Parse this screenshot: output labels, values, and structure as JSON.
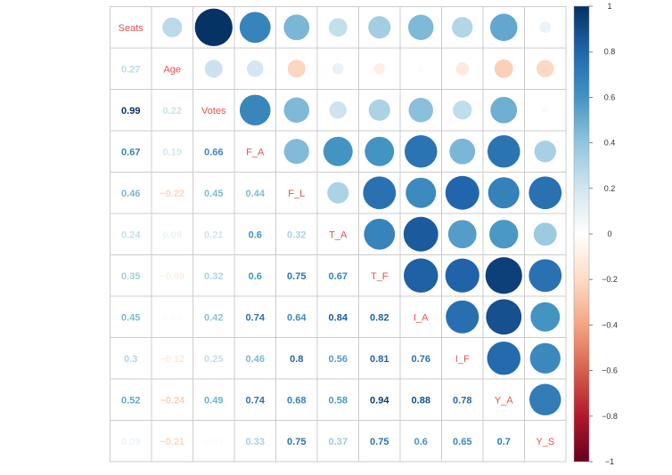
{
  "chart_data": {
    "type": "heatmap",
    "variables": [
      "Seats",
      "Age",
      "Votes",
      "F_A",
      "F_L",
      "T_A",
      "T_F",
      "I_A",
      "I_F",
      "Y_A",
      "Y_S"
    ],
    "matrix": [
      [
        1,
        0.27,
        0.99,
        0.67,
        0.46,
        0.24,
        0.35,
        0.45,
        0.3,
        0.52,
        0.09
      ],
      [
        0.27,
        1,
        0.22,
        0.19,
        -0.22,
        0.09,
        -0.09,
        0.03,
        -0.12,
        -0.24,
        -0.21
      ],
      [
        0.99,
        0.22,
        1,
        0.66,
        0.45,
        0.21,
        0.32,
        0.42,
        0.25,
        0.49,
        0.03
      ],
      [
        0.67,
        0.19,
        0.66,
        1,
        0.44,
        0.6,
        0.6,
        0.74,
        0.46,
        0.74,
        0.33
      ],
      [
        0.46,
        -0.22,
        0.45,
        0.44,
        1,
        0.32,
        0.75,
        0.64,
        0.8,
        0.68,
        0.75
      ],
      [
        0.24,
        0.09,
        0.21,
        0.6,
        0.32,
        1,
        0.67,
        0.84,
        0.56,
        0.58,
        0.37
      ],
      [
        0.35,
        -0.09,
        0.32,
        0.6,
        0.75,
        0.67,
        1,
        0.82,
        0.81,
        0.94,
        0.75
      ],
      [
        0.45,
        0.03,
        0.42,
        0.74,
        0.64,
        0.84,
        0.82,
        1,
        0.76,
        0.88,
        0.6
      ],
      [
        0.3,
        -0.12,
        0.25,
        0.46,
        0.8,
        0.56,
        0.81,
        0.76,
        1,
        0.78,
        0.65
      ],
      [
        0.52,
        -0.24,
        0.49,
        0.74,
        0.68,
        0.58,
        0.94,
        0.88,
        0.78,
        1,
        0.7
      ],
      [
        0.09,
        -0.21,
        0.03,
        0.33,
        0.75,
        0.37,
        0.75,
        0.6,
        0.65,
        0.7,
        1
      ]
    ],
    "number_labels": [
      [
        "",
        "",
        "",
        "",
        "",
        "",
        "",
        "",
        "",
        "",
        ""
      ],
      [
        "0.27",
        "",
        "",
        "",
        "",
        "",
        "",
        "",
        "",
        "",
        ""
      ],
      [
        "0.99",
        "0.22",
        "",
        "",
        "",
        "",
        "",
        "",
        "",
        "",
        ""
      ],
      [
        "0.67",
        "0.19",
        "0.66",
        "",
        "",
        "",
        "",
        "",
        "",
        "",
        ""
      ],
      [
        "0.46",
        "−0.22",
        "0.45",
        "0.44",
        "",
        "",
        "",
        "",
        "",
        "",
        ""
      ],
      [
        "0.24",
        "0.09",
        "0.21",
        "0.6",
        "0.32",
        "",
        "",
        "",
        "",
        "",
        ""
      ],
      [
        "0.35",
        "−0.09",
        "0.32",
        "0.6",
        "0.75",
        "0.67",
        "",
        "",
        "",
        "",
        ""
      ],
      [
        "0.45",
        "0.03",
        "0.42",
        "0.74",
        "0.64",
        "0.84",
        "0.82",
        "",
        "",
        "",
        ""
      ],
      [
        "0.3",
        "−0.12",
        "0.25",
        "0.46",
        "0.8",
        "0.56",
        "0.81",
        "0.76",
        "",
        "",
        ""
      ],
      [
        "0.52",
        "−0.24",
        "0.49",
        "0.74",
        "0.68",
        "0.58",
        "0.94",
        "0.88",
        "0.78",
        "",
        ""
      ],
      [
        "0.09",
        "−0.21",
        "0.03",
        "0.33",
        "0.75",
        "0.37",
        "0.75",
        "0.6",
        "0.65",
        "0.7",
        ""
      ]
    ],
    "upper": "circle",
    "lower": "number",
    "diagonal": "label",
    "colorbar": {
      "range": [
        -1,
        1
      ],
      "ticks": [
        1,
        0.8,
        0.6,
        0.4,
        0.2,
        0,
        -0.2,
        -0.4,
        -0.6,
        -0.8,
        -1
      ],
      "tick_labels": [
        "1",
        "0.8",
        "0.6",
        "0.4",
        "0.2",
        "0",
        "−0.2",
        "−0.4",
        "−0.6",
        "−0.8",
        "−1"
      ],
      "placement": "right"
    },
    "colormap": {
      "stops": [
        [
          -1,
          "#67001f"
        ],
        [
          -0.8,
          "#b2182b"
        ],
        [
          -0.6,
          "#d6604d"
        ],
        [
          -0.4,
          "#f4a582"
        ],
        [
          -0.2,
          "#fddbc7"
        ],
        [
          0,
          "#ffffff"
        ],
        [
          0.2,
          "#d1e5f0"
        ],
        [
          0.4,
          "#92c5de"
        ],
        [
          0.6,
          "#4393c3"
        ],
        [
          0.8,
          "#2166ac"
        ],
        [
          1,
          "#053061"
        ]
      ]
    },
    "diagonal_label_color": "#e8504a",
    "grid": true,
    "title": "",
    "xlabel": "",
    "ylabel": ""
  }
}
